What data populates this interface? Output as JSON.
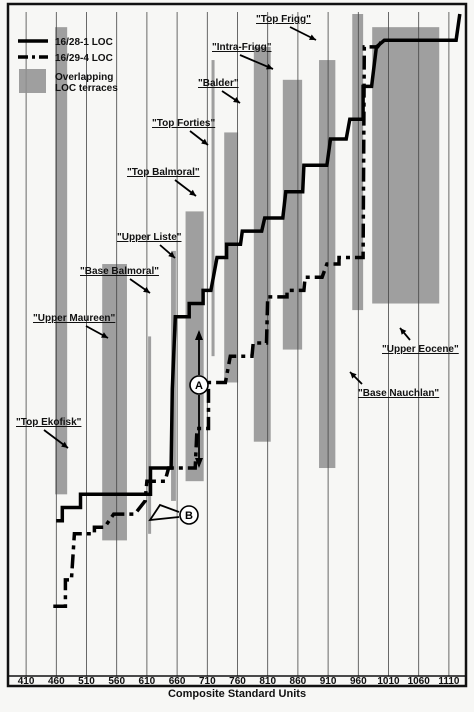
{
  "chart_data": {
    "type": "line",
    "xlabel": "Composite Standard Units",
    "x_ticks": [
      "410",
      "460",
      "510",
      "560",
      "610",
      "660",
      "710",
      "760",
      "810",
      "860",
      "910",
      "960",
      "1010",
      "1060",
      "1110"
    ],
    "xlim": [
      385,
      1135
    ],
    "ylim": [
      0,
      100
    ],
    "y_axis_labels": false,
    "grid": "vertical",
    "legend": {
      "position": "top-left",
      "entries": [
        {
          "label": "16/28-1 LOC",
          "style": "solid"
        },
        {
          "label": "16/29-4 LOC",
          "style": "dash-dot"
        },
        {
          "label": "Overlapping LOC terraces",
          "style": "gray-box"
        }
      ]
    },
    "series": [
      {
        "name": "16/28-1 LOC",
        "points": [
          [
            460,
            23
          ],
          [
            470,
            23
          ],
          [
            470,
            25
          ],
          [
            500,
            25
          ],
          [
            500,
            27
          ],
          [
            616,
            27
          ],
          [
            616,
            31
          ],
          [
            622,
            31
          ],
          [
            650,
            31
          ],
          [
            652,
            43
          ],
          [
            657,
            54
          ],
          [
            680,
            54
          ],
          [
            680,
            56
          ],
          [
            703,
            56
          ],
          [
            703,
            58
          ],
          [
            716,
            58
          ],
          [
            726,
            63
          ],
          [
            742,
            63
          ],
          [
            742,
            65
          ],
          [
            765,
            65
          ],
          [
            768,
            67
          ],
          [
            800,
            67
          ],
          [
            805,
            69
          ],
          [
            835,
            69
          ],
          [
            840,
            73
          ],
          [
            868,
            73
          ],
          [
            870,
            77
          ],
          [
            908,
            77
          ],
          [
            914,
            81
          ],
          [
            940,
            81
          ],
          [
            946,
            84
          ],
          [
            968,
            84
          ],
          [
            968,
            89
          ],
          [
            982,
            89
          ],
          [
            990,
            95
          ],
          [
            1003,
            96
          ],
          [
            1122,
            96
          ],
          [
            1128,
            100
          ]
        ]
      },
      {
        "name": "16/29-4 LOC",
        "points": [
          [
            455,
            10
          ],
          [
            475,
            10
          ],
          [
            475,
            14
          ],
          [
            485,
            14
          ],
          [
            490,
            21
          ],
          [
            523,
            21
          ],
          [
            523,
            22
          ],
          [
            540,
            22
          ],
          [
            555,
            24
          ],
          [
            590,
            24
          ],
          [
            607,
            26
          ],
          [
            610,
            29
          ],
          [
            640,
            29
          ],
          [
            646,
            31
          ],
          [
            672,
            31
          ],
          [
            690,
            31
          ],
          [
            693,
            37
          ],
          [
            712,
            37
          ],
          [
            712,
            44
          ],
          [
            740,
            44
          ],
          [
            748,
            48
          ],
          [
            784,
            48
          ],
          [
            786,
            50
          ],
          [
            808,
            50
          ],
          [
            810,
            57
          ],
          [
            842,
            57
          ],
          [
            842,
            58
          ],
          [
            870,
            58
          ],
          [
            872,
            60
          ],
          [
            900,
            60
          ],
          [
            908,
            62
          ],
          [
            928,
            62
          ],
          [
            928,
            63
          ],
          [
            968,
            63
          ],
          [
            970,
            95
          ],
          [
            992,
            95
          ],
          [
            1000,
            96
          ],
          [
            1060,
            96
          ]
        ]
      }
    ],
    "terraces_x": [
      {
        "x0": 458,
        "x1": 478
      },
      {
        "x0": 536,
        "x1": 577
      },
      {
        "x0": 612,
        "x1": 615
      },
      {
        "x0": 650,
        "x1": 658
      },
      {
        "x0": 674,
        "x1": 704
      },
      {
        "x0": 717,
        "x1": 722
      },
      {
        "x0": 738,
        "x1": 761
      },
      {
        "x0": 787,
        "x1": 815
      },
      {
        "x0": 835,
        "x1": 867
      },
      {
        "x0": 895,
        "x1": 922
      },
      {
        "x0": 950,
        "x1": 968
      },
      {
        "x0": 983,
        "x1": 1094
      }
    ],
    "annotations": [
      {
        "text": "\"Top Ekofisk\""
      },
      {
        "text": "\"Upper Maureen\""
      },
      {
        "text": "\"Base Balmoral\""
      },
      {
        "text": "\"Upper Liste\""
      },
      {
        "text": "\"Top Balmoral\""
      },
      {
        "text": "\"Top Forties\""
      },
      {
        "text": "\"Balder\""
      },
      {
        "text": "\"Intra-Frigg\""
      },
      {
        "text": "\"Top Frigg\""
      },
      {
        "text": "\"Base Nauchlan\""
      },
      {
        "text": "\"Upper Eocene\""
      }
    ],
    "markers": [
      {
        "label": "A"
      },
      {
        "label": "B"
      }
    ]
  }
}
